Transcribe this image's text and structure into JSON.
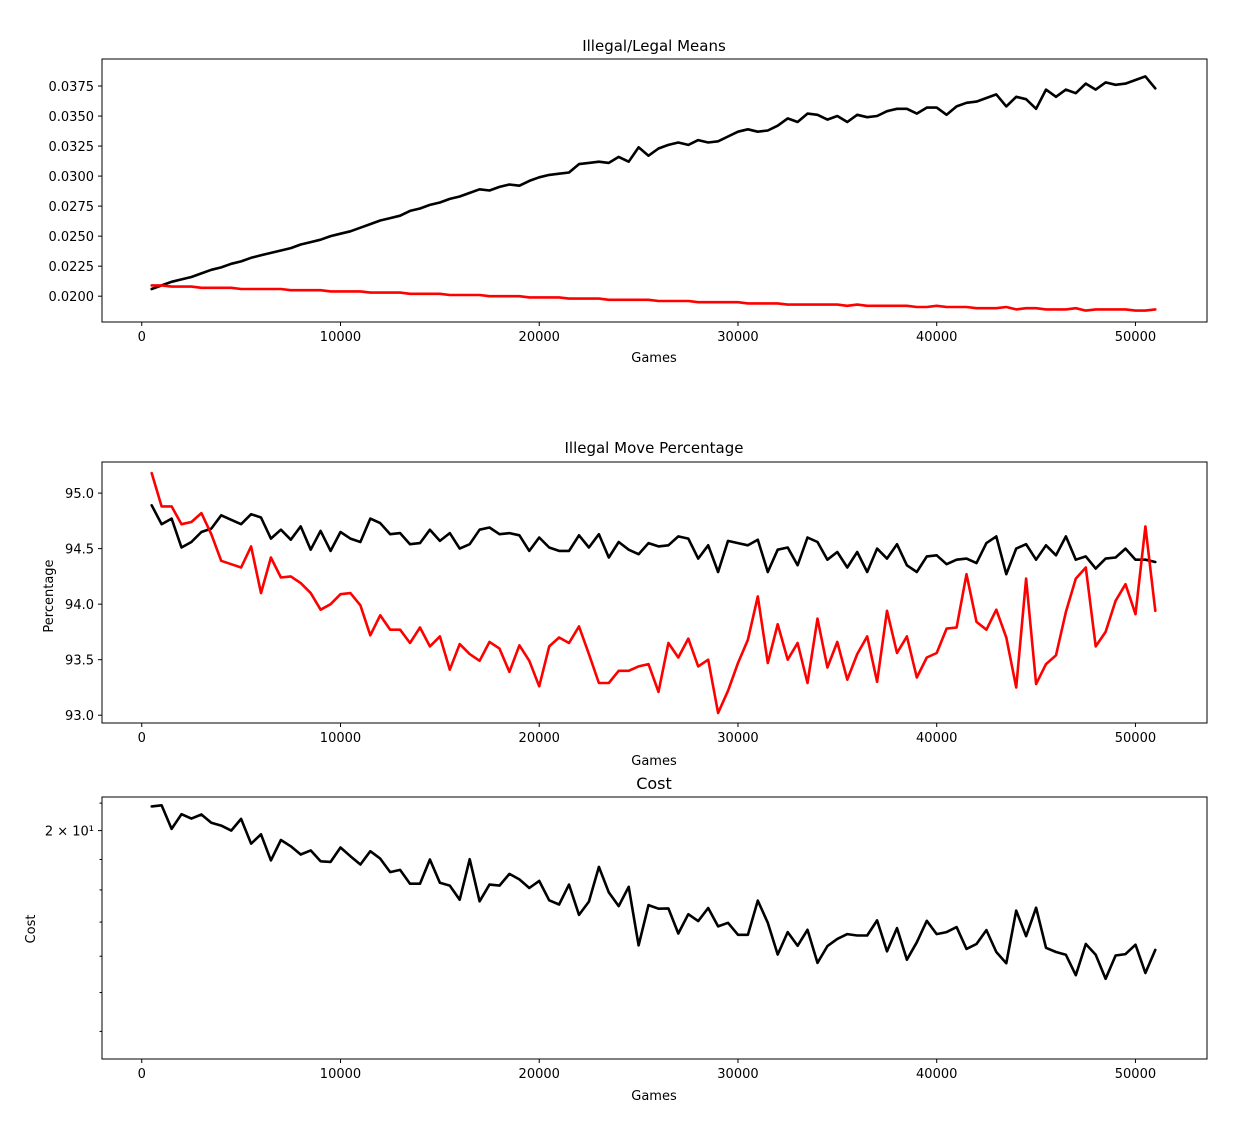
{
  "figure": {
    "background": "#ffffff",
    "axis_color": "#000000"
  },
  "chart_data": [
    {
      "type": "line",
      "title": "Illegal/Legal Means",
      "xlabel": "Games",
      "ylabel": "",
      "xlim": [
        -2000,
        53600
      ],
      "ylim": [
        0.01785,
        0.03975
      ],
      "xticks": [
        0,
        10000,
        20000,
        30000,
        40000,
        50000
      ],
      "xtick_labels": [
        "0",
        "10000",
        "20000",
        "30000",
        "40000",
        "50000"
      ],
      "yticks": [
        0.02,
        0.0225,
        0.025,
        0.0275,
        0.03,
        0.0325,
        0.035,
        0.0375
      ],
      "ytick_labels": [
        "0.0200",
        "0.0225",
        "0.0250",
        "0.0275",
        "0.0300",
        "0.0325",
        "0.0350",
        "0.0375"
      ],
      "x": [
        500,
        1000,
        1500,
        2000,
        2500,
        3000,
        3500,
        4000,
        4500,
        5000,
        5500,
        6000,
        6500,
        7000,
        7500,
        8000,
        8500,
        9000,
        9500,
        10000,
        10500,
        11000,
        11500,
        12000,
        12500,
        13000,
        13500,
        14000,
        14500,
        15000,
        15500,
        16000,
        16500,
        17000,
        17500,
        18000,
        18500,
        19000,
        19500,
        20000,
        20500,
        21000,
        21500,
        22000,
        22500,
        23000,
        23500,
        24000,
        24500,
        25000,
        25500,
        26000,
        26500,
        27000,
        27500,
        28000,
        28500,
        29000,
        29500,
        30000,
        30500,
        31000,
        31500,
        32000,
        32500,
        33000,
        33500,
        34000,
        34500,
        35000,
        35500,
        36000,
        36500,
        37000,
        37500,
        38000,
        38500,
        39000,
        39500,
        40000,
        40500,
        41000,
        41500,
        42000,
        42500,
        43000,
        43500,
        44000,
        44500,
        45000,
        45500,
        46000,
        46500,
        47000,
        47500,
        48000,
        48500,
        49000,
        49500,
        50000,
        50500,
        51000
      ],
      "series": [
        {
          "color": "#000000",
          "values": [
            0.0206,
            0.0209,
            0.0212,
            0.0214,
            0.0216,
            0.0219,
            0.0222,
            0.0224,
            0.0227,
            0.0229,
            0.0232,
            0.0234,
            0.0236,
            0.0238,
            0.024,
            0.0243,
            0.0245,
            0.0247,
            0.025,
            0.0252,
            0.0254,
            0.0257,
            0.026,
            0.0263,
            0.0265,
            0.0267,
            0.0271,
            0.0273,
            0.0276,
            0.0278,
            0.0281,
            0.0283,
            0.0286,
            0.0289,
            0.0288,
            0.0291,
            0.0293,
            0.0292,
            0.0296,
            0.0299,
            0.0301,
            0.0302,
            0.0303,
            0.031,
            0.0311,
            0.0312,
            0.0311,
            0.0316,
            0.0312,
            0.0324,
            0.0317,
            0.0323,
            0.0326,
            0.0328,
            0.0326,
            0.033,
            0.0328,
            0.0329,
            0.0333,
            0.0337,
            0.0339,
            0.0337,
            0.0338,
            0.0342,
            0.0348,
            0.0345,
            0.0352,
            0.0351,
            0.0347,
            0.035,
            0.0345,
            0.0351,
            0.0349,
            0.035,
            0.0354,
            0.0356,
            0.0356,
            0.0352,
            0.0357,
            0.0357,
            0.0351,
            0.0358,
            0.0361,
            0.0362,
            0.0365,
            0.0368,
            0.0358,
            0.0366,
            0.0364,
            0.0356,
            0.0372,
            0.0366,
            0.0372,
            0.0369,
            0.0377,
            0.0372,
            0.0378,
            0.0376,
            0.0377,
            0.038,
            0.0383,
            0.0373
          ]
        },
        {
          "color": "#ff0000",
          "values": [
            0.0209,
            0.0209,
            0.0208,
            0.0208,
            0.0208,
            0.0207,
            0.0207,
            0.0207,
            0.0207,
            0.0206,
            0.0206,
            0.0206,
            0.0206,
            0.0206,
            0.0205,
            0.0205,
            0.0205,
            0.0205,
            0.0204,
            0.0204,
            0.0204,
            0.0204,
            0.0203,
            0.0203,
            0.0203,
            0.0203,
            0.0202,
            0.0202,
            0.0202,
            0.0202,
            0.0201,
            0.0201,
            0.0201,
            0.0201,
            0.02,
            0.02,
            0.02,
            0.02,
            0.0199,
            0.0199,
            0.0199,
            0.0199,
            0.0198,
            0.0198,
            0.0198,
            0.0198,
            0.0197,
            0.0197,
            0.0197,
            0.0197,
            0.0197,
            0.0196,
            0.0196,
            0.0196,
            0.0196,
            0.0195,
            0.0195,
            0.0195,
            0.0195,
            0.0195,
            0.0194,
            0.0194,
            0.0194,
            0.0194,
            0.0193,
            0.0193,
            0.0193,
            0.0193,
            0.0193,
            0.0193,
            0.0192,
            0.0193,
            0.0192,
            0.0192,
            0.0192,
            0.0192,
            0.0192,
            0.0191,
            0.0191,
            0.0192,
            0.0191,
            0.0191,
            0.0191,
            0.019,
            0.019,
            0.019,
            0.0191,
            0.0189,
            0.019,
            0.019,
            0.0189,
            0.0189,
            0.0189,
            0.019,
            0.0188,
            0.0189,
            0.0189,
            0.0189,
            0.0189,
            0.0188,
            0.0188,
            0.0189
          ]
        }
      ]
    },
    {
      "type": "line",
      "title": "Illegal Move Percentage",
      "xlabel": "Games",
      "ylabel": "Percentage",
      "xlim": [
        -2000,
        53600
      ],
      "ylim": [
        92.93,
        95.28
      ],
      "xticks": [
        0,
        10000,
        20000,
        30000,
        40000,
        50000
      ],
      "xtick_labels": [
        "0",
        "10000",
        "20000",
        "30000",
        "40000",
        "50000"
      ],
      "yticks": [
        93.0,
        93.5,
        94.0,
        94.5,
        95.0
      ],
      "ytick_labels": [
        "93.0",
        "93.5",
        "94.0",
        "94.5",
        "95.0"
      ],
      "x": [
        500,
        1000,
        1500,
        2000,
        2500,
        3000,
        3500,
        4000,
        4500,
        5000,
        5500,
        6000,
        6500,
        7000,
        7500,
        8000,
        8500,
        9000,
        9500,
        10000,
        10500,
        11000,
        11500,
        12000,
        12500,
        13000,
        13500,
        14000,
        14500,
        15000,
        15500,
        16000,
        16500,
        17000,
        17500,
        18000,
        18500,
        19000,
        19500,
        20000,
        20500,
        21000,
        21500,
        22000,
        22500,
        23000,
        23500,
        24000,
        24500,
        25000,
        25500,
        26000,
        26500,
        27000,
        27500,
        28000,
        28500,
        29000,
        29500,
        30000,
        30500,
        31000,
        31500,
        32000,
        32500,
        33000,
        33500,
        34000,
        34500,
        35000,
        35500,
        36000,
        36500,
        37000,
        37500,
        38000,
        38500,
        39000,
        39500,
        40000,
        40500,
        41000,
        41500,
        42000,
        42500,
        43000,
        43500,
        44000,
        44500,
        45000,
        45500,
        46000,
        46500,
        47000,
        47500,
        48000,
        48500,
        49000,
        49500,
        50000,
        50500,
        51000
      ],
      "series": [
        {
          "color": "#000000",
          "values": [
            94.89,
            94.72,
            94.77,
            94.51,
            94.56,
            94.65,
            94.68,
            94.8,
            94.76,
            94.72,
            94.81,
            94.78,
            94.59,
            94.67,
            94.58,
            94.7,
            94.49,
            94.66,
            94.48,
            94.65,
            94.59,
            94.56,
            94.77,
            94.73,
            94.63,
            94.64,
            94.54,
            94.55,
            94.67,
            94.57,
            94.64,
            94.5,
            94.54,
            94.67,
            94.69,
            94.63,
            94.64,
            94.62,
            94.48,
            94.6,
            94.51,
            94.48,
            94.48,
            94.62,
            94.51,
            94.63,
            94.42,
            94.56,
            94.49,
            94.45,
            94.55,
            94.52,
            94.53,
            94.61,
            94.59,
            94.41,
            94.53,
            94.29,
            94.57,
            94.55,
            94.53,
            94.58,
            94.29,
            94.49,
            94.51,
            94.35,
            94.6,
            94.56,
            94.4,
            94.47,
            94.33,
            94.47,
            94.29,
            94.5,
            94.41,
            94.54,
            94.35,
            94.29,
            94.43,
            94.44,
            94.36,
            94.4,
            94.41,
            94.37,
            94.55,
            94.61,
            94.27,
            94.5,
            94.54,
            94.4,
            94.53,
            94.44,
            94.61,
            94.4,
            94.43,
            94.32,
            94.41,
            94.42,
            94.5,
            94.4,
            94.4,
            94.38
          ]
        },
        {
          "color": "#ff0000",
          "values": [
            95.18,
            94.88,
            94.88,
            94.72,
            94.74,
            94.82,
            94.63,
            94.39,
            94.36,
            94.33,
            94.52,
            94.1,
            94.42,
            94.24,
            94.25,
            94.19,
            94.1,
            93.95,
            94.0,
            94.09,
            94.1,
            93.99,
            93.72,
            93.9,
            93.77,
            93.77,
            93.65,
            93.79,
            93.62,
            93.71,
            93.41,
            93.64,
            93.55,
            93.49,
            93.66,
            93.6,
            93.39,
            93.63,
            93.49,
            93.26,
            93.62,
            93.7,
            93.65,
            93.8,
            93.55,
            93.29,
            93.29,
            93.4,
            93.4,
            93.44,
            93.46,
            93.21,
            93.65,
            93.52,
            93.69,
            93.44,
            93.5,
            93.02,
            93.22,
            93.47,
            93.68,
            94.07,
            93.47,
            93.82,
            93.5,
            93.65,
            93.29,
            93.87,
            93.43,
            93.66,
            93.32,
            93.55,
            93.71,
            93.3,
            93.94,
            93.56,
            93.71,
            93.34,
            93.52,
            93.56,
            93.78,
            93.79,
            94.27,
            93.84,
            93.77,
            93.95,
            93.7,
            93.25,
            94.23,
            93.28,
            93.46,
            93.54,
            93.93,
            94.23,
            94.33,
            93.62,
            93.75,
            94.03,
            94.18,
            93.91,
            94.7,
            93.94
          ]
        }
      ]
    },
    {
      "type": "line",
      "title": "Cost",
      "xlabel": "Games",
      "ylabel": "Cost",
      "yscale": "log",
      "xlim": [
        -2000,
        53600
      ],
      "ylim": [
        13.33,
        21.23
      ],
      "xticks": [
        0,
        10000,
        20000,
        30000,
        40000,
        50000
      ],
      "xtick_labels": [
        "0",
        "10000",
        "20000",
        "30000",
        "40000",
        "50000"
      ],
      "yticks": [
        20
      ],
      "ytick_labels": [
        "2 × 10¹"
      ],
      "x": [
        500,
        1000,
        1500,
        2000,
        2500,
        3000,
        3500,
        4000,
        4500,
        5000,
        5500,
        6000,
        6500,
        7000,
        7500,
        8000,
        8500,
        9000,
        9500,
        10000,
        10500,
        11000,
        11500,
        12000,
        12500,
        13000,
        13500,
        14000,
        14500,
        15000,
        15500,
        16000,
        16500,
        17000,
        17500,
        18000,
        18500,
        19000,
        19500,
        20000,
        20500,
        21000,
        21500,
        22000,
        22500,
        23000,
        23500,
        24000,
        24500,
        25000,
        25500,
        26000,
        26500,
        27000,
        27500,
        28000,
        28500,
        29000,
        29500,
        30000,
        30500,
        31000,
        31500,
        32000,
        32500,
        33000,
        33500,
        34000,
        34500,
        35000,
        35500,
        36000,
        36500,
        37000,
        37500,
        38000,
        38500,
        39000,
        39500,
        40000,
        40500,
        41000,
        41500,
        42000,
        42500,
        43000,
        43500,
        44000,
        44500,
        45000,
        45500,
        46000,
        46500,
        47000,
        47500,
        48000,
        48500,
        49000,
        49500,
        50000,
        50500,
        51000
      ],
      "series": [
        {
          "color": "#000000",
          "values": [
            20.88,
            20.92,
            20.06,
            20.59,
            20.43,
            20.58,
            20.28,
            20.18,
            20.0,
            20.42,
            19.54,
            19.87,
            18.97,
            19.67,
            19.45,
            19.17,
            19.31,
            18.94,
            18.92,
            19.41,
            19.11,
            18.83,
            19.28,
            19.03,
            18.58,
            18.65,
            18.2,
            18.2,
            19.0,
            18.23,
            18.14,
            17.69,
            19.01,
            17.64,
            18.17,
            18.14,
            18.52,
            18.34,
            18.06,
            18.29,
            17.67,
            17.54,
            18.17,
            17.22,
            17.63,
            18.75,
            17.92,
            17.49,
            18.1,
            16.31,
            17.52,
            17.41,
            17.42,
            16.66,
            17.24,
            17.03,
            17.43,
            16.87,
            16.98,
            16.62,
            16.62,
            17.66,
            16.98,
            16.05,
            16.7,
            16.3,
            16.77,
            15.81,
            16.29,
            16.5,
            16.64,
            16.6,
            16.6,
            17.05,
            16.14,
            16.82,
            15.9,
            16.4,
            17.04,
            16.64,
            16.7,
            16.85,
            16.21,
            16.35,
            16.76,
            16.12,
            15.8,
            17.35,
            16.58,
            17.44,
            16.24,
            16.12,
            16.04,
            15.47,
            16.35,
            16.04,
            15.37,
            16.02,
            16.06,
            16.33,
            15.53,
            16.18
          ]
        }
      ]
    }
  ]
}
